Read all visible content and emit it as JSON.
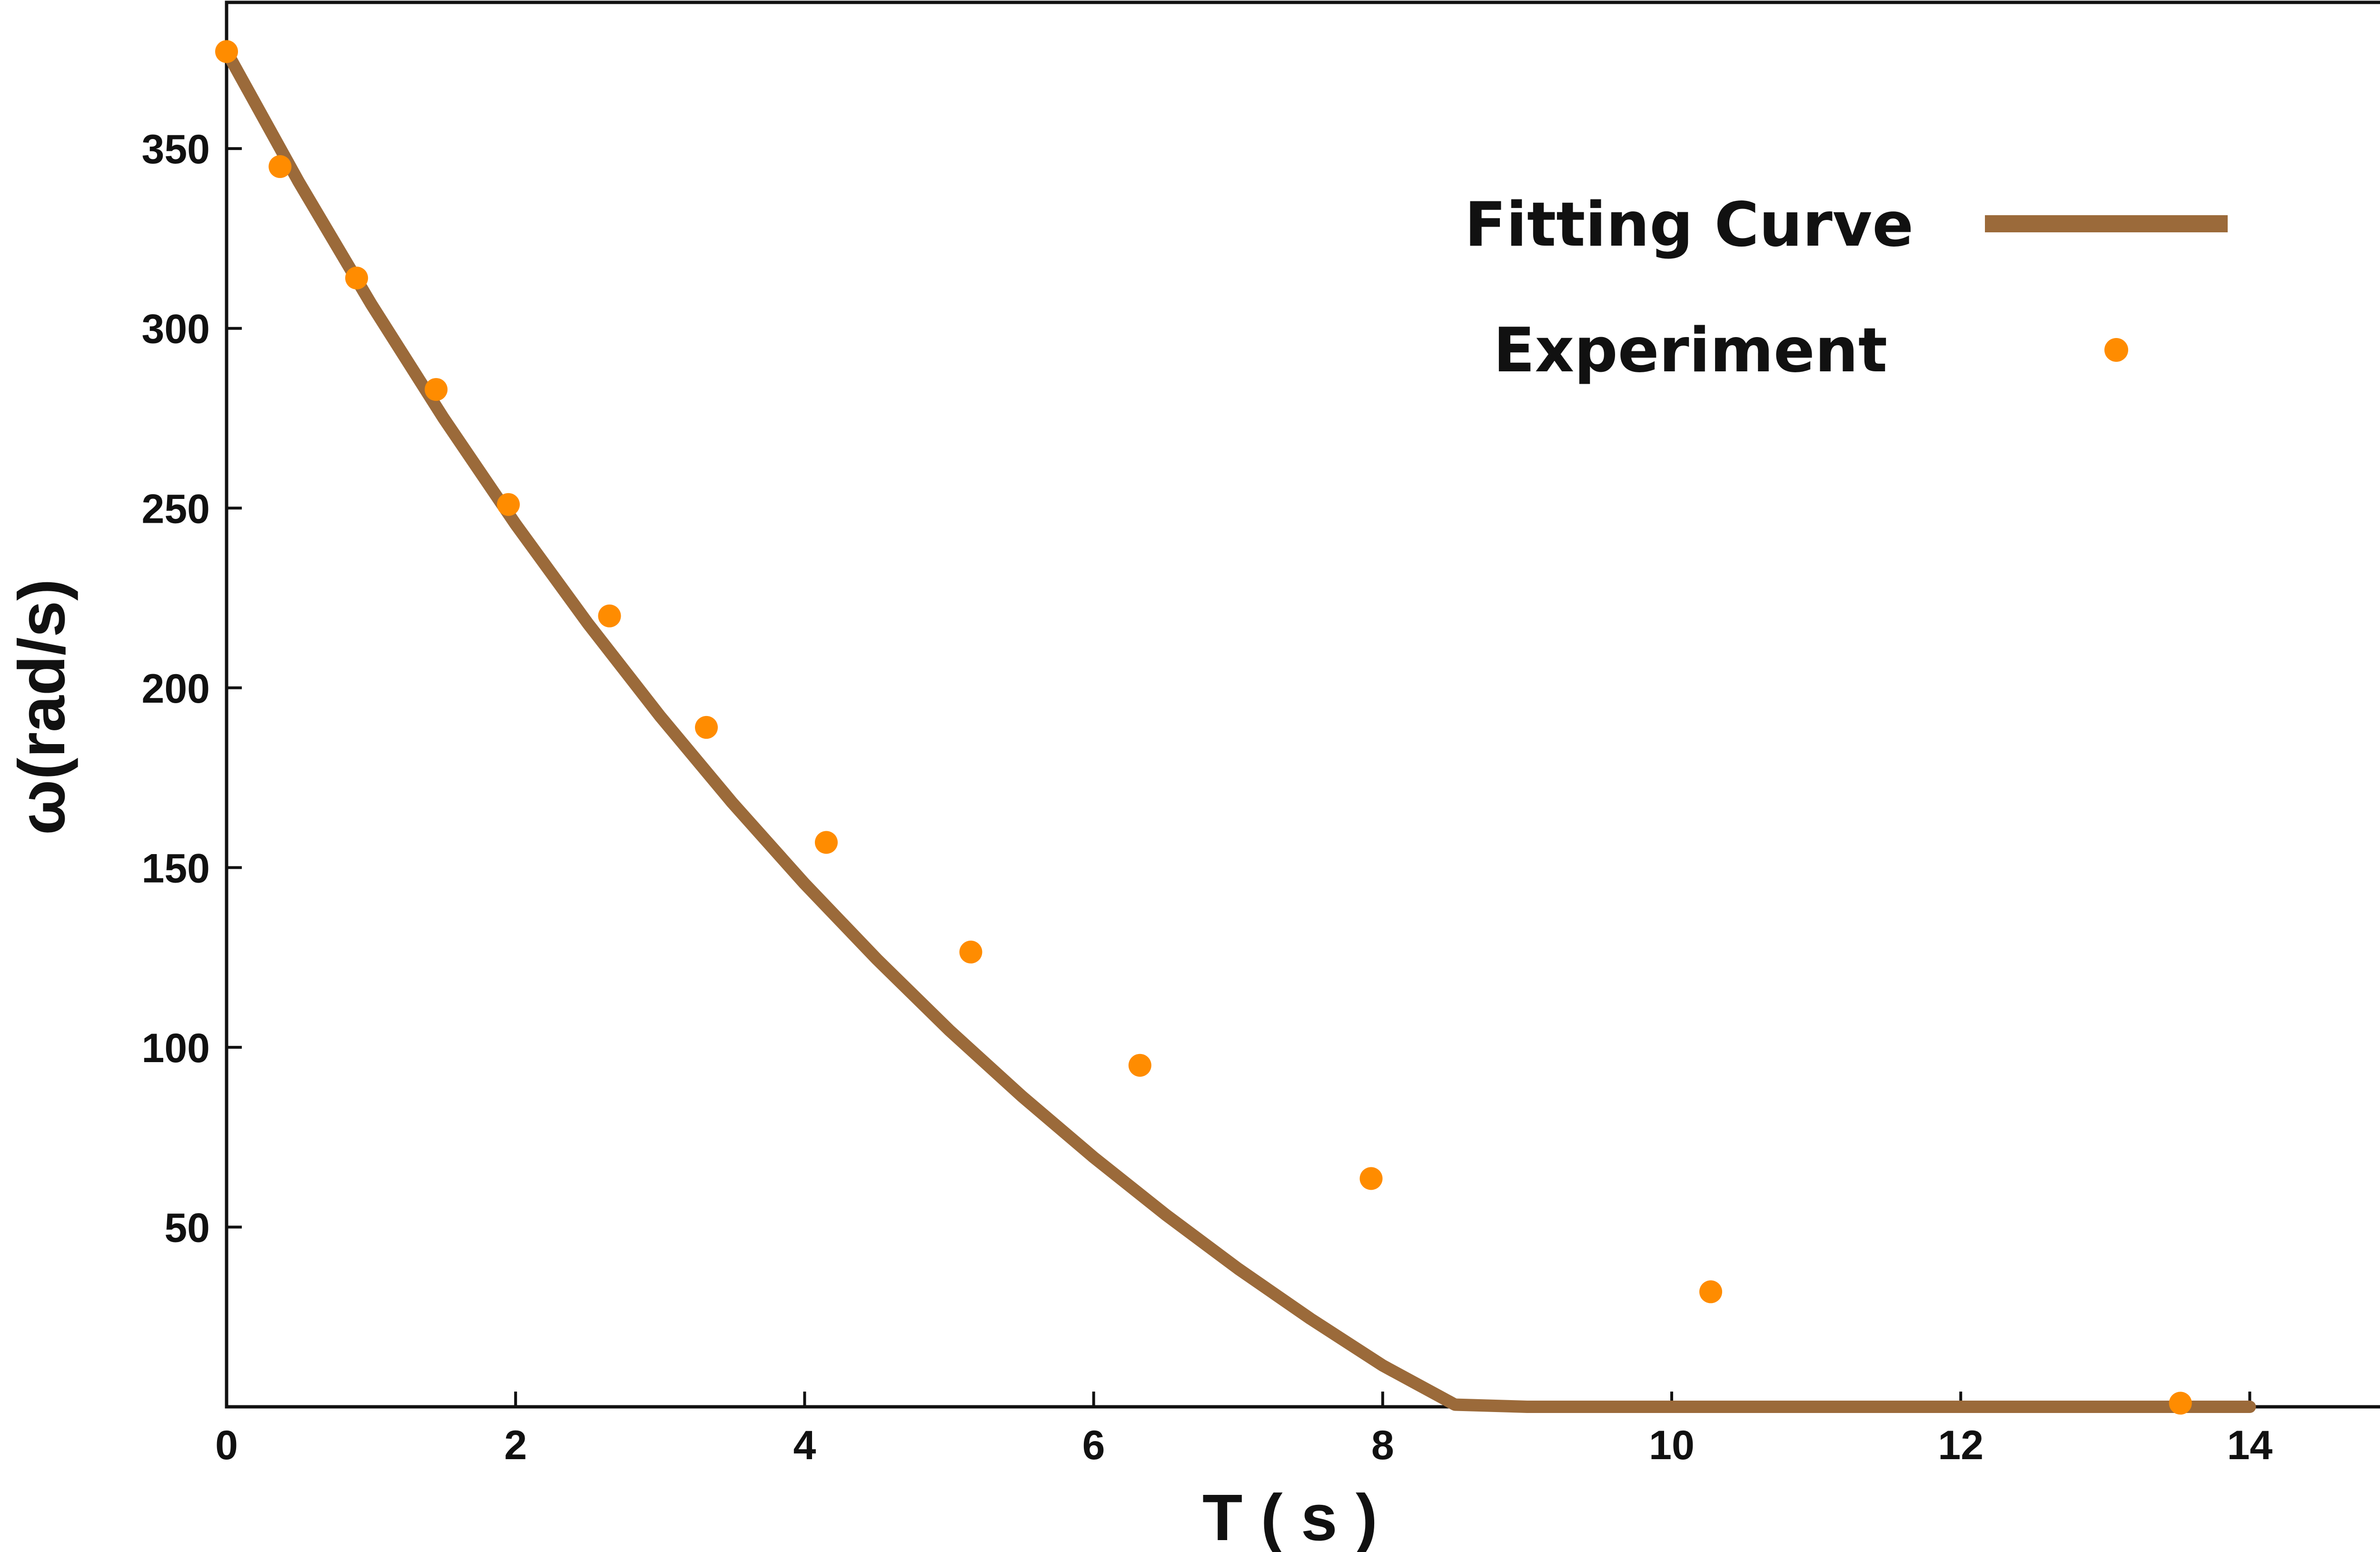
{
  "chart_data": {
    "type": "scatter",
    "xlabel": "T ( s )",
    "ylabel": "ω(rad/s)",
    "xlim": [
      0,
      15
    ],
    "ylim": [
      0,
      378
    ],
    "x_ticks": [
      0,
      2,
      4,
      6,
      8,
      10,
      12,
      14
    ],
    "y_ticks": [
      50,
      100,
      150,
      200,
      250,
      300,
      350
    ],
    "grid": false,
    "legend_position": "top-right",
    "colors": {
      "curve": "#9B6A3A",
      "points": "#FF8C00",
      "axes": "#111111"
    },
    "series": [
      {
        "name": "Fitting Curve",
        "kind": "line",
        "x": [
          0,
          0.5,
          1,
          1.5,
          2,
          2.5,
          3,
          3.5,
          4,
          4.5,
          5,
          5.5,
          6,
          6.5,
          7,
          7.5,
          8,
          8.5,
          9,
          9.5,
          10,
          10.5,
          11,
          11.5,
          12,
          12.5,
          13,
          13.5,
          14
        ],
        "y": [
          377,
          340.7,
          306.8,
          275.1,
          245.5,
          217.9,
          192.1,
          168.0,
          145.5,
          124.5,
          104.8,
          86.5,
          69.4,
          53.4,
          38.4,
          24.5,
          11.5,
          0.6,
          0,
          0,
          0,
          0,
          0,
          0,
          0,
          0,
          0,
          0,
          0
        ]
      },
      {
        "name": "Experiment",
        "kind": "scatter",
        "x": [
          0,
          0.37,
          0.9,
          1.45,
          1.95,
          2.65,
          3.32,
          4.15,
          5.15,
          6.32,
          7.92,
          10.27,
          13.52
        ],
        "y": [
          377,
          345,
          314,
          283,
          251,
          220,
          189,
          157,
          126.5,
          95,
          63.5,
          32,
          1
        ]
      }
    ]
  }
}
